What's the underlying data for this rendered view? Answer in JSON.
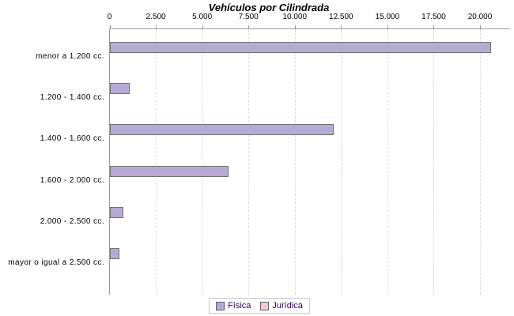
{
  "title": "Vehículos por Cilindrada",
  "chart_data": {
    "type": "bar",
    "orientation": "horizontal",
    "title": "Vehículos por Cilindrada",
    "xlabel": "",
    "ylabel": "",
    "categories": [
      "menor a 1.200 cc.",
      "1.200 - 1.400 cc.",
      "1.400 - 1.600 cc.",
      "1.600 - 2.000 cc.",
      "2.000 - 2.500 cc.",
      "mayor o igual a 2.500 cc."
    ],
    "series": [
      {
        "name": "Física",
        "color": "#b5abd5",
        "values": [
          20500,
          1000,
          12000,
          6300,
          620,
          420
        ]
      },
      {
        "name": "Jurídica",
        "color": "#f9caca",
        "values": [
          0,
          0,
          0,
          0,
          0,
          0
        ]
      }
    ],
    "xlim": [
      0,
      21600
    ],
    "x_ticks": [
      0,
      2500,
      5000,
      7500,
      10000,
      12500,
      15000,
      17500,
      20000
    ],
    "x_tick_labels": [
      "0",
      "2.500",
      "5.000",
      "7.500",
      "10.000",
      "12.500",
      "15.000",
      "17.500",
      "20.000"
    ],
    "grid": "vertical-dashed",
    "legend_position": "bottom"
  },
  "legend": {
    "items": [
      {
        "label": "Física",
        "color": "#b5abd5"
      },
      {
        "label": "Jurídica",
        "color": "#f9caca"
      }
    ]
  },
  "colors": {
    "bar_border": "#717171",
    "axis": "#9a9a9a",
    "gridline": "#dcdcdc",
    "legend_text": "#330066",
    "legend_border": "#c8c8c8",
    "background": "#ffffff",
    "title_text": "#000000"
  }
}
